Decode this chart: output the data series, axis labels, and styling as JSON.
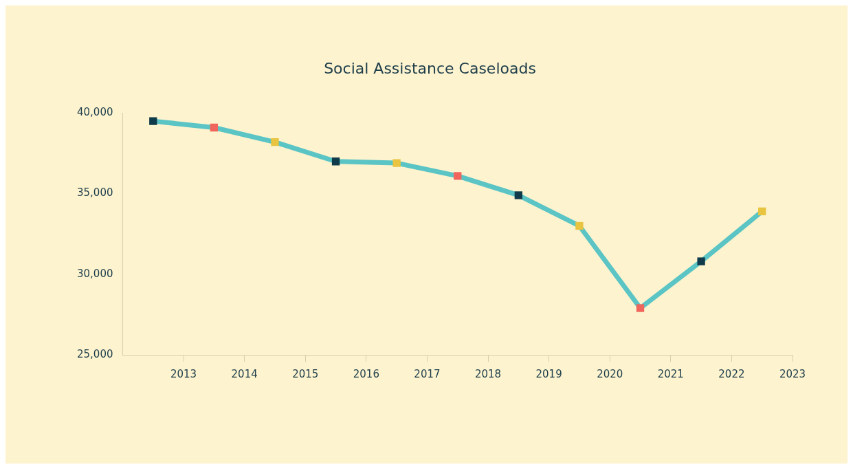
{
  "chart_data": {
    "type": "line",
    "title": "Social Assistance Caseloads",
    "x": [
      2012.5,
      2013.5,
      2014.5,
      2015.5,
      2016.5,
      2017.5,
      2018.5,
      2019.5,
      2020.5,
      2021.5,
      2022.5
    ],
    "series": [
      {
        "color": "#5bc4c4",
        "colors": [
          "#0f3a4a",
          "#f0665c",
          "#e8c440",
          "#0f3a4a",
          "#e8c440",
          "#f0665c",
          "#0f3a4a",
          "#e8c440",
          "#f0665c",
          "#0f3a4a",
          "#e8c440"
        ],
        "values": [
          39500,
          39100,
          38200,
          37000,
          36900,
          36100,
          34900,
          33000,
          27900,
          30800,
          33900
        ]
      }
    ],
    "xlim": [
      2012,
      2023
    ],
    "xticks": [
      2013,
      2014,
      2015,
      2016,
      2017,
      2018,
      2019,
      2020,
      2021,
      2022,
      2023
    ],
    "ylim": [
      25000,
      40000
    ],
    "yticks": [
      {
        "value": 25000,
        "label": "25,000"
      },
      {
        "value": 30000,
        "label": "30,000"
      },
      {
        "value": 35000,
        "label": "35,000"
      },
      {
        "value": 40000,
        "label": "40,000"
      }
    ],
    "grid": false,
    "legend": false,
    "marker": "square",
    "line_style": "solid"
  }
}
